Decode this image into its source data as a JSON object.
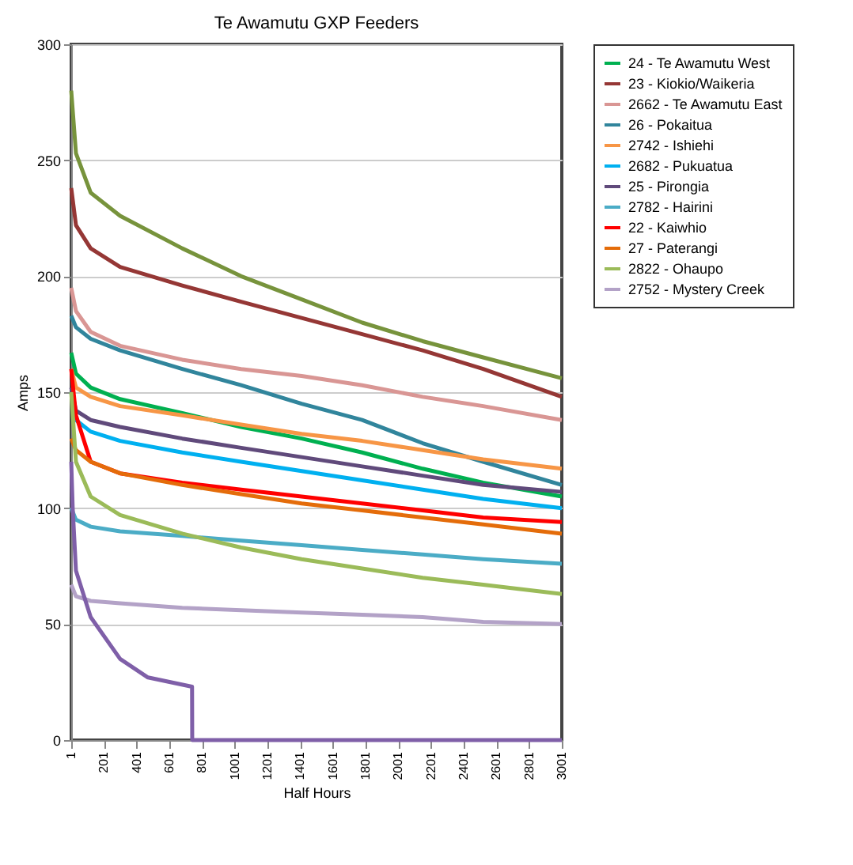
{
  "chart_data": {
    "type": "line",
    "title": "Te Awamutu GXP Feeders",
    "xlabel": "Half Hours",
    "ylabel": "Amps",
    "xlim": [
      1,
      3001
    ],
    "xticks": [
      1,
      201,
      401,
      601,
      801,
      1001,
      1201,
      1401,
      1601,
      1801,
      2001,
      2201,
      2401,
      2601,
      2801,
      3001
    ],
    "ylim": [
      0,
      300
    ],
    "yticks": [
      0,
      50,
      100,
      150,
      200,
      250,
      300
    ],
    "grid": "y",
    "legend": "right",
    "marker": "none",
    "line_style": "solid",
    "x": [
      1,
      30,
      120,
      300,
      680,
      1040,
      1410,
      1780,
      2150,
      2520,
      3001
    ],
    "series": [
      {
        "name": "24 - Te Awamutu West",
        "color": "#00b050",
        "values": [
          167,
          158,
          152,
          147,
          141,
          135,
          130,
          124,
          117,
          111,
          105
        ]
      },
      {
        "name": "23 - Kiokio/Waikeria",
        "color": "#953735",
        "values": [
          238,
          222,
          212,
          204,
          196,
          189,
          182,
          175,
          168,
          160,
          148
        ]
      },
      {
        "name": "2662 - Te Awamutu East",
        "color": "#d99694",
        "values": [
          195,
          185,
          176,
          170,
          164,
          160,
          157,
          153,
          148,
          144,
          138
        ]
      },
      {
        "name": "26 - Pokaitua",
        "color": "#31859c",
        "values": [
          183,
          178,
          173,
          168,
          160,
          153,
          145,
          138,
          128,
          120,
          110
        ]
      },
      {
        "name": "2742 - Ishiehi",
        "color": "#f79646",
        "values": [
          160,
          152,
          148,
          144,
          140,
          136,
          132,
          129,
          125,
          121,
          117
        ]
      },
      {
        "name": "2682 - Pukuatua",
        "color": "#00b0f0",
        "values": [
          150,
          138,
          133,
          129,
          124,
          120,
          116,
          112,
          108,
          104,
          100
        ]
      },
      {
        "name": "25 - Pirongia",
        "color": "#604a7b",
        "values": [
          152,
          142,
          138,
          135,
          130,
          126,
          122,
          118,
          114,
          110,
          107
        ]
      },
      {
        "name": "2782 - Hairini",
        "color": "#4bacc6",
        "values": [
          100,
          95,
          92,
          90,
          88,
          86,
          84,
          82,
          80,
          78,
          76
        ]
      },
      {
        "name": "22 - Kaiwhio",
        "color": "#ff0000",
        "values": [
          160,
          140,
          120,
          115,
          111,
          108,
          105,
          102,
          99,
          96,
          94
        ]
      },
      {
        "name": "27 - Paterangi",
        "color": "#e46c0a",
        "values": [
          130,
          125,
          120,
          115,
          110,
          106,
          102,
          99,
          96,
          93,
          89
        ]
      },
      {
        "name": "2822 - Ohaupo",
        "color": "#9bbb59",
        "values": [
          150,
          120,
          105,
          97,
          89,
          83,
          78,
          74,
          70,
          67,
          63
        ]
      },
      {
        "color": "#77933c",
        "values": [
          280,
          253,
          236,
          226,
          212,
          200,
          190,
          180,
          172,
          165,
          156
        ]
      },
      {
        "name": "2752 - Mystery Creek",
        "color": "#b3a2c7",
        "values": [
          67,
          62,
          60,
          59,
          57,
          56,
          55,
          54,
          53,
          51,
          50
        ]
      },
      {
        "color": "#7f5fa8",
        "x": [
          1,
          10,
          30,
          120,
          300,
          470,
          740,
          741,
          3001
        ],
        "values": [
          120,
          100,
          73,
          53,
          35,
          27,
          23,
          0,
          0
        ]
      }
    ]
  }
}
